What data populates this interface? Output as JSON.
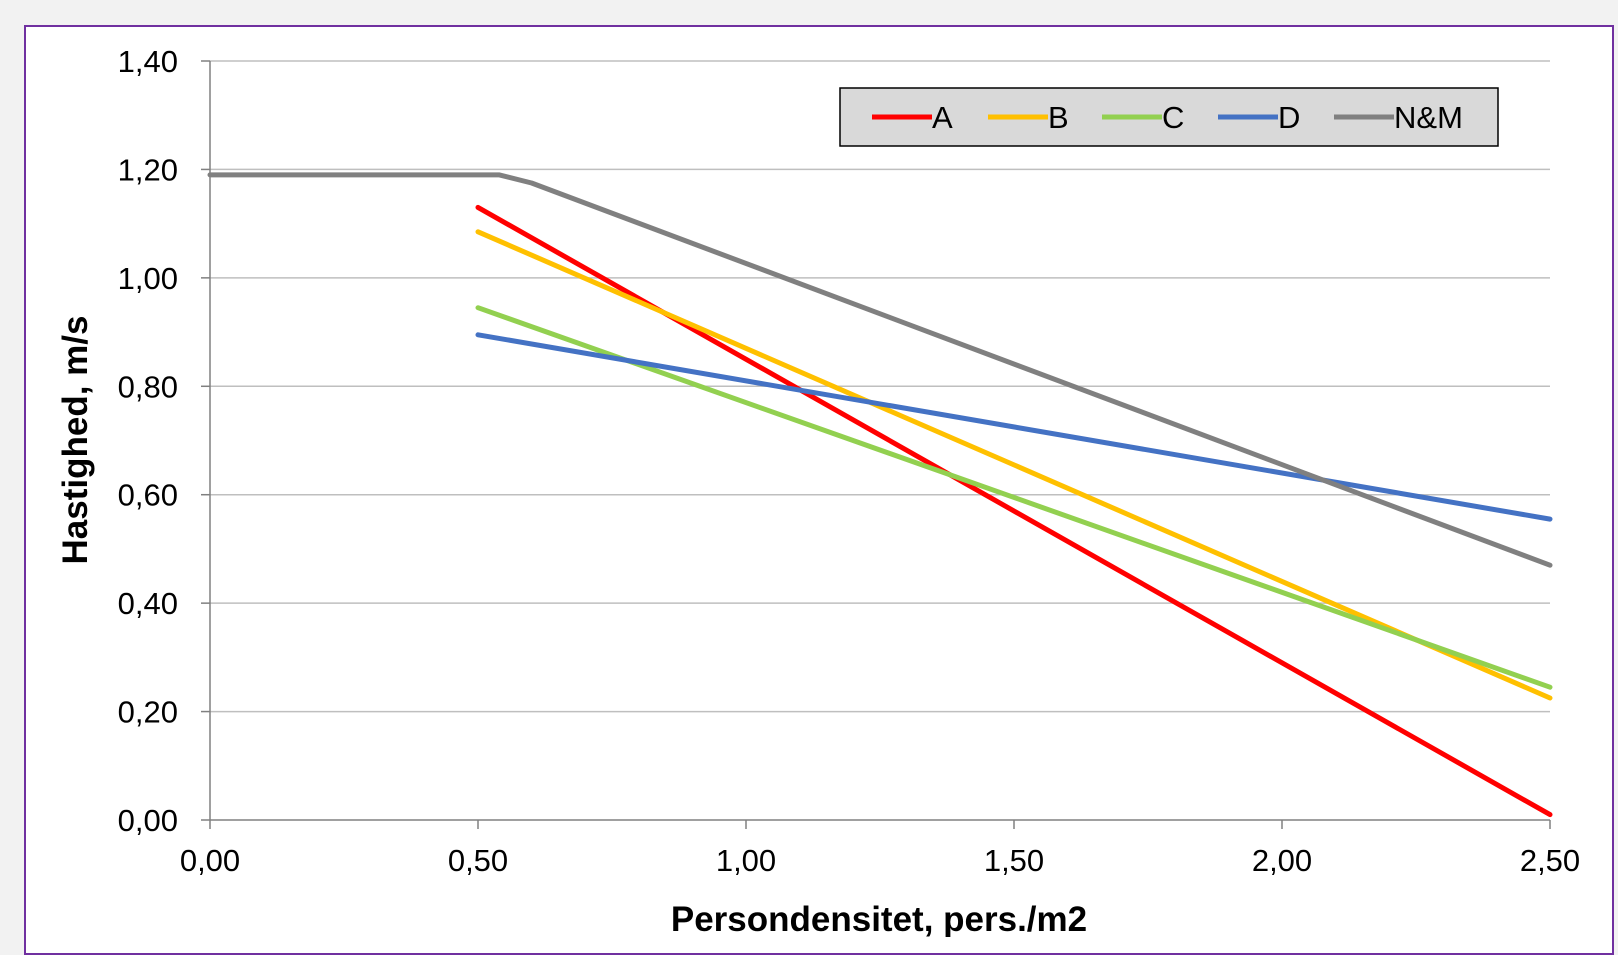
{
  "chart_data": {
    "type": "line",
    "title": "",
    "xlabel": "Persondensitet, pers./m2",
    "ylabel": "Hastighed, m/s",
    "xlim": [
      0,
      2.5
    ],
    "ylim": [
      0,
      1.4
    ],
    "x_ticks": [
      0,
      0.5,
      1.0,
      1.5,
      2.0,
      2.5
    ],
    "y_ticks": [
      0,
      0.2,
      0.4,
      0.6,
      0.8,
      1.0,
      1.2,
      1.4
    ],
    "x_tick_labels": [
      "0,00",
      "0,50",
      "1,00",
      "1,50",
      "2,00",
      "2,50"
    ],
    "y_tick_labels": [
      "0,00",
      "0,20",
      "0,40",
      "0,60",
      "0,80",
      "1,00",
      "1,20",
      "1,40"
    ],
    "grid": true,
    "legend_position": "top-right",
    "series": [
      {
        "name": "A",
        "color": "#ff0000",
        "points": [
          [
            0.5,
            1.13
          ],
          [
            2.5,
            0.01
          ]
        ]
      },
      {
        "name": "B",
        "color": "#ffc000",
        "points": [
          [
            0.5,
            1.085
          ],
          [
            2.5,
            0.225
          ]
        ]
      },
      {
        "name": "C",
        "color": "#92d050",
        "points": [
          [
            0.5,
            0.945
          ],
          [
            2.5,
            0.245
          ]
        ]
      },
      {
        "name": "D",
        "color": "#4472c4",
        "points": [
          [
            0.5,
            0.895
          ],
          [
            2.5,
            0.555
          ]
        ]
      },
      {
        "name": "N&M",
        "color": "#808080",
        "points": [
          [
            0.0,
            1.19
          ],
          [
            0.54,
            1.19
          ],
          [
            0.6,
            1.175
          ],
          [
            2.5,
            0.47
          ]
        ]
      }
    ]
  }
}
